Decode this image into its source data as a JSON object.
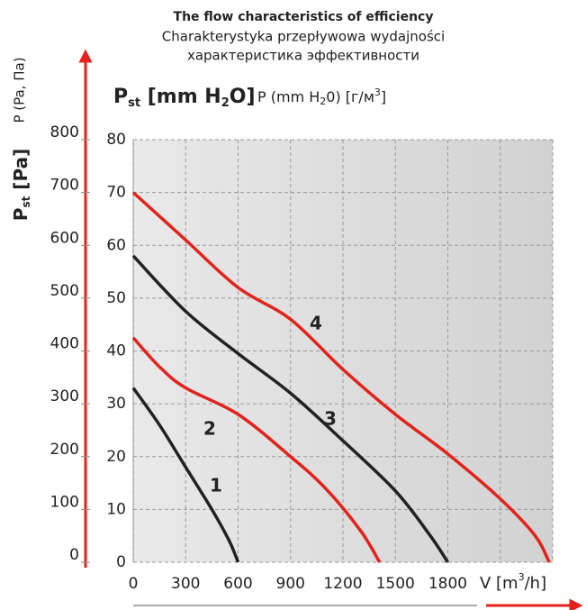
{
  "chart_data": {
    "type": "line",
    "title": [
      "The flow characteristics of efficiency",
      "Charakterystyka przepływowa wydajności",
      "характеристика эффективности"
    ],
    "y_label": [
      "P",
      "st",
      " [mm H",
      "2",
      "O]"
    ],
    "y_label_alt": [
      "P (mm H",
      "2",
      "0) [г/м",
      "3",
      "]"
    ],
    "y2_label": [
      "P",
      "st",
      " [Pa]"
    ],
    "y2_label_alt": "P (Pa, Па)",
    "x_label": [
      "V [m",
      "3",
      "/h]"
    ],
    "xlim": [
      0,
      2400
    ],
    "xticks": [
      0,
      300,
      600,
      900,
      1200,
      1500,
      1800
    ],
    "ylim": [
      0,
      80
    ],
    "yticks": [
      0,
      10,
      20,
      30,
      40,
      50,
      60,
      70,
      80
    ],
    "y2lim": [
      0,
      800
    ],
    "y2ticks": [
      0,
      100,
      200,
      300,
      400,
      500,
      600,
      700,
      800
    ],
    "grid": true,
    "series": [
      {
        "name": "1",
        "color": "#222222",
        "x": [
          0,
          150,
          300,
          450,
          550,
          600
        ],
        "values": [
          33,
          26,
          18,
          10,
          4,
          0
        ]
      },
      {
        "name": "2",
        "color": "#e3231b",
        "x": [
          0,
          150,
          300,
          600,
          900,
          1100,
          1300,
          1410
        ],
        "values": [
          42.5,
          37,
          33,
          28,
          20,
          14,
          6,
          0
        ]
      },
      {
        "name": "3",
        "color": "#222222",
        "x": [
          0,
          300,
          600,
          900,
          1200,
          1500,
          1700,
          1800
        ],
        "values": [
          58,
          47.5,
          39.5,
          32,
          23,
          13.5,
          5,
          0
        ]
      },
      {
        "name": "4",
        "color": "#e3231b",
        "x": [
          0,
          300,
          600,
          900,
          1200,
          1500,
          1800,
          2100,
          2300,
          2380
        ],
        "values": [
          70,
          61,
          52,
          46,
          36.5,
          28,
          20.5,
          12,
          5,
          0
        ]
      }
    ]
  }
}
